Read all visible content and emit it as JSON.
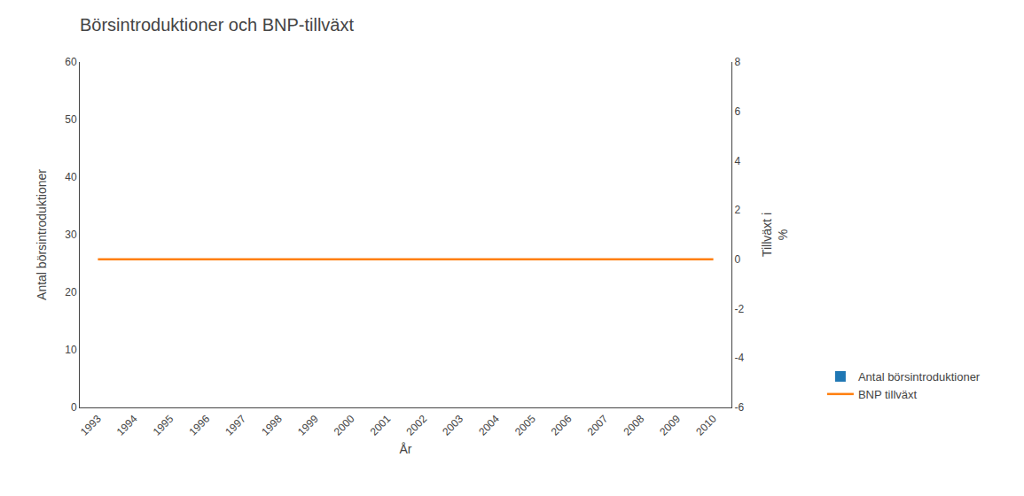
{
  "chart_data": {
    "type": "bar",
    "title": "Börsintroduktioner och BNP-tillväxt",
    "xlabel": "År",
    "ylabel": "Antal börsintroduktioner",
    "y2label": "Tillväxt i\n%",
    "categories": [
      "1993",
      "1994",
      "1995",
      "1996",
      "1997",
      "1998",
      "1999",
      "2000",
      "2001",
      "2002",
      "2003",
      "2004",
      "2005",
      "2006",
      "2007",
      "2008",
      "2009",
      "2010"
    ],
    "series": [
      {
        "name": "Antal börsintroduktioner",
        "type": "bar",
        "values": [
          0,
          0,
          0,
          0,
          0,
          0,
          0,
          0,
          0,
          0,
          0,
          0,
          0,
          0,
          0,
          0,
          0,
          0
        ]
      },
      {
        "name": "BNP tillväxt",
        "type": "line",
        "axis": "y2",
        "values": [
          0,
          0,
          0,
          0,
          0,
          0,
          0,
          0,
          0,
          0,
          0,
          0,
          0,
          0,
          0,
          0,
          0,
          0
        ]
      }
    ],
    "ylim": [
      0,
      60
    ],
    "yticks": [
      0,
      10,
      20,
      30,
      40,
      50,
      60
    ],
    "y2lim": [
      -6,
      8
    ],
    "y2ticks": [
      -6,
      -4,
      -2,
      0,
      2,
      4,
      6,
      8
    ],
    "grid": false,
    "legend": "lower right"
  }
}
